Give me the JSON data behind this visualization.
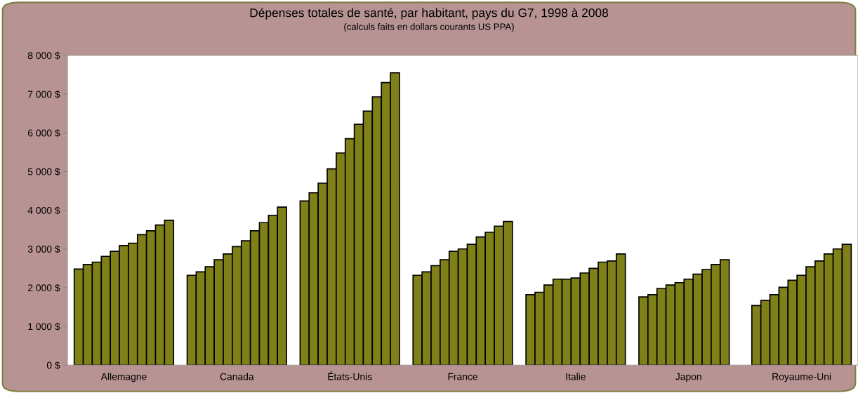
{
  "chart_data": {
    "type": "bar",
    "title": "Dépenses totales de santé, par habitant, pays du G7, 1998 à 2008",
    "subtitle": "(calculs faits en dollars courants US PPA)",
    "categories": [
      "Allemagne",
      "Canada",
      "États-Unis",
      "France",
      "Italie",
      "Japon",
      "Royaume-Uni"
    ],
    "series": [
      {
        "color": "#808018",
        "values": [
          2480,
          2320,
          4240,
          2320,
          1820,
          1760,
          1540
        ]
      },
      {
        "color": "#808018",
        "values": [
          2600,
          2410,
          4450,
          2410,
          1880,
          1820,
          1670
        ]
      },
      {
        "color": "#808018",
        "values": [
          2660,
          2540,
          4700,
          2570,
          2070,
          1980,
          1820
        ]
      },
      {
        "color": "#808018",
        "values": [
          2810,
          2720,
          5070,
          2720,
          2220,
          2070,
          2010
        ]
      },
      {
        "color": "#808018",
        "values": [
          2940,
          2870,
          5480,
          2940,
          2220,
          2130,
          2190
        ]
      },
      {
        "color": "#808018",
        "values": [
          3090,
          3060,
          5850,
          3000,
          2250,
          2220,
          2320
        ]
      },
      {
        "color": "#808018",
        "values": [
          3150,
          3210,
          6220,
          3120,
          2380,
          2350,
          2540
        ]
      },
      {
        "color": "#808018",
        "values": [
          3370,
          3470,
          6560,
          3310,
          2500,
          2470,
          2690
        ]
      },
      {
        "color": "#808018",
        "values": [
          3470,
          3680,
          6930,
          3430,
          2660,
          2600,
          2870
        ]
      },
      {
        "color": "#808018",
        "values": [
          3620,
          3870,
          7300,
          3590,
          2690,
          2720,
          3000
        ]
      },
      {
        "color": "#808018",
        "values": [
          3740,
          4080,
          7550,
          3710,
          2870,
          null,
          3120
        ]
      }
    ],
    "ylim": [
      0,
      8000
    ],
    "yticks": [
      {
        "value": 0,
        "label": "0 $"
      },
      {
        "value": 1000,
        "label": "1 000 $"
      },
      {
        "value": 2000,
        "label": "2 000 $"
      },
      {
        "value": 3000,
        "label": "3 000 $"
      },
      {
        "value": 4000,
        "label": "4 000 $"
      },
      {
        "value": 5000,
        "label": "5 000 $"
      },
      {
        "value": 6000,
        "label": "6 000 $"
      },
      {
        "value": 7000,
        "label": "7 000 $"
      },
      {
        "value": 8000,
        "label": "8 000 $"
      }
    ],
    "grid": false
  }
}
